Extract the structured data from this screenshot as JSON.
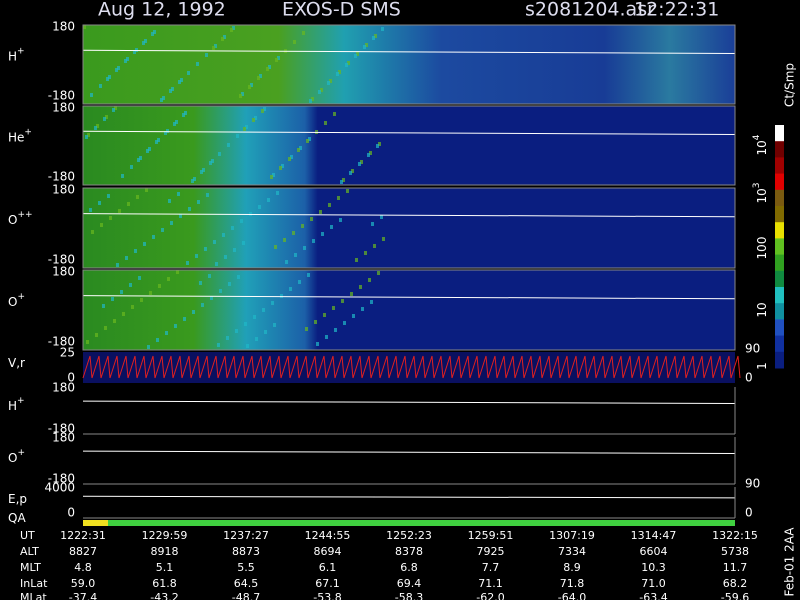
{
  "header": {
    "date": "Aug 12, 1992",
    "instrument": "EXOS-D SMS",
    "file": "s2081204.asr",
    "time": "12:22:31"
  },
  "panels": [
    {
      "label": "H",
      "sup": "+",
      "ticks": [
        "180",
        "-180"
      ]
    },
    {
      "label": "He",
      "sup": "+",
      "ticks": [
        "180",
        "-180"
      ]
    },
    {
      "label": "O",
      "sup": "++",
      "ticks": [
        "180",
        "-180"
      ]
    },
    {
      "label": "O",
      "sup": "+",
      "ticks": [
        "180",
        "-180"
      ]
    }
  ],
  "lower_panels": [
    {
      "label": "V,r",
      "left_ticks": [
        "25",
        "0"
      ],
      "right_ticks": [
        "90",
        "0"
      ]
    },
    {
      "label": "H",
      "sup": "+",
      "left_ticks": [
        "180",
        "-180"
      ]
    },
    {
      "label": "O",
      "sup": "+",
      "left_ticks": [
        "180",
        "-180"
      ]
    },
    {
      "label": "E,p",
      "left_ticks": [
        "4000",
        "0"
      ],
      "right_ticks": [
        "90",
        "0"
      ]
    },
    {
      "label": "QA"
    }
  ],
  "colorbar": {
    "unit": "Ct/Smp",
    "labels": [
      {
        "text": "10",
        "sup": "4"
      },
      {
        "text": "10",
        "sup": "3"
      },
      {
        "text": "100"
      },
      {
        "text": "10"
      },
      {
        "text": "1"
      }
    ]
  },
  "table": {
    "rows": [
      {
        "label": "UT",
        "values": [
          "1222:31",
          "1229:59",
          "1237:27",
          "1244:55",
          "1252:23",
          "1259:51",
          "1307:19",
          "1314:47",
          "1322:15"
        ]
      },
      {
        "label": "ALT",
        "values": [
          "8827",
          "8918",
          "8873",
          "8694",
          "8378",
          "7925",
          "7334",
          "6604",
          "5738"
        ]
      },
      {
        "label": "MLT",
        "values": [
          "4.8",
          "5.1",
          "5.5",
          "6.1",
          "6.8",
          "7.7",
          "8.9",
          "10.3",
          "11.7"
        ]
      },
      {
        "label": "InLat",
        "values": [
          "59.0",
          "61.8",
          "64.5",
          "67.1",
          "69.4",
          "71.1",
          "71.8",
          "71.0",
          "68.2"
        ]
      },
      {
        "label": "MLat",
        "values": [
          "-37.4",
          "-43.2",
          "-48.7",
          "-53.8",
          "-58.3",
          "-62.0",
          "-64.0",
          "-63.4",
          "-59.6"
        ]
      }
    ]
  },
  "footer": "Feb-01 2AA"
}
